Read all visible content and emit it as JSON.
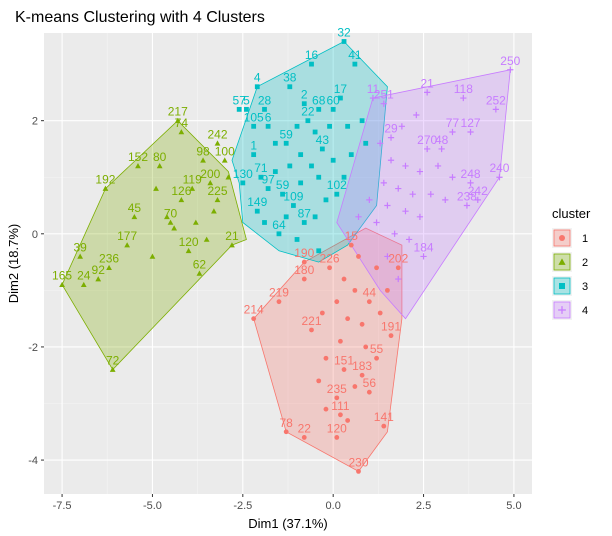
{
  "chart_data": {
    "type": "scatter",
    "title": "K-means Clustering with 4 Clusters",
    "xlabel": "Dim1 (37.1%)",
    "ylabel": "Dim2 (18.7%)",
    "xlim": [
      -8.0,
      5.5
    ],
    "ylim": [
      -4.6,
      3.55
    ],
    "xticks": [
      -7.5,
      -5.0,
      -2.5,
      0.0,
      2.5,
      5.0
    ],
    "xtick_labels": [
      "-7.5",
      "-5.0",
      "-2.5",
      "0.0",
      "2.5",
      "5.0"
    ],
    "yticks": [
      -4,
      -2,
      0,
      2
    ],
    "ytick_labels": [
      "-4",
      "-2",
      "0",
      "2"
    ],
    "grid": true,
    "legend": {
      "title": "cluster",
      "placement": "right",
      "entries": [
        "1",
        "2",
        "3",
        "4"
      ]
    },
    "colors": {
      "1": "#F8766D",
      "2": "#7CAE00",
      "3": "#00BFC4",
      "4": "#C77CFF"
    },
    "series": [
      {
        "name": "1",
        "marker": "circle",
        "hull": [
          [
            0.7,
            -4.2
          ],
          [
            1.5,
            -3.5
          ],
          [
            1.9,
            -1.5
          ],
          [
            1.9,
            -0.2
          ],
          [
            0.9,
            0.1
          ],
          [
            -0.8,
            -0.5
          ],
          [
            -2.2,
            -1.5
          ],
          [
            -1.3,
            -3.5
          ]
        ],
        "points": [
          {
            "label": "230",
            "x": 0.7,
            "y": -4.2
          },
          {
            "label": "141",
            "x": 1.4,
            "y": -3.4
          },
          {
            "label": "78",
            "x": -1.3,
            "y": -3.5
          },
          {
            "label": "22",
            "x": -0.8,
            "y": -3.6
          },
          {
            "label": "120",
            "x": 0.1,
            "y": -3.6
          },
          {
            "label": "111",
            "x": 0.2,
            "y": -3.2
          },
          {
            "label": "56",
            "x": 1.0,
            "y": -2.8
          },
          {
            "label": "214",
            "x": -2.2,
            "y": -1.5
          },
          {
            "label": "219",
            "x": -1.5,
            "y": -1.2
          },
          {
            "label": "221",
            "x": -0.6,
            "y": -1.7
          },
          {
            "label": "190",
            "x": -0.8,
            "y": -0.5
          },
          {
            "label": "180",
            "x": -0.8,
            "y": -0.8
          },
          {
            "label": "226",
            "x": -0.1,
            "y": -0.6
          },
          {
            "label": "55",
            "x": 1.2,
            "y": -2.2
          },
          {
            "label": "191",
            "x": 1.6,
            "y": -1.8
          },
          {
            "label": "202",
            "x": 1.8,
            "y": -0.6
          },
          {
            "label": "183",
            "x": 0.8,
            "y": -2.5
          },
          {
            "label": "151",
            "x": 0.3,
            "y": -2.4
          },
          {
            "label": "235",
            "x": 0.1,
            "y": -2.9
          },
          {
            "label": "15",
            "x": 0.5,
            "y": -0.2
          },
          {
            "label": "44",
            "x": 1.0,
            "y": -1.2
          },
          {
            "label": "",
            "x": 0.3,
            "y": -0.8
          },
          {
            "label": "",
            "x": 0.6,
            "y": -1.0
          },
          {
            "label": "",
            "x": 0.4,
            "y": -1.5
          },
          {
            "label": "",
            "x": 0.8,
            "y": -1.6
          },
          {
            "label": "",
            "x": 0.2,
            "y": -1.9
          },
          {
            "label": "",
            "x": 0.9,
            "y": -2.0
          },
          {
            "label": "",
            "x": -0.2,
            "y": -2.2
          },
          {
            "label": "",
            "x": -0.4,
            "y": -2.6
          },
          {
            "label": "",
            "x": 0.6,
            "y": -2.7
          },
          {
            "label": "",
            "x": -0.2,
            "y": -3.1
          },
          {
            "label": "",
            "x": 0.4,
            "y": -3.3
          },
          {
            "label": "",
            "x": 1.2,
            "y": -0.6
          },
          {
            "label": "",
            "x": 1.5,
            "y": -1.0
          },
          {
            "label": "",
            "x": 0.1,
            "y": -1.2
          },
          {
            "label": "",
            "x": -0.3,
            "y": -1.4
          },
          {
            "label": "",
            "x": 1.3,
            "y": -1.4
          },
          {
            "label": "",
            "x": 0.7,
            "y": -0.4
          }
        ]
      },
      {
        "name": "2",
        "marker": "triangle",
        "hull": [
          [
            -7.5,
            -0.9
          ],
          [
            -6.1,
            -2.4
          ],
          [
            -2.8,
            -0.2
          ],
          [
            -2.4,
            -0.1
          ],
          [
            -2.9,
            1.1
          ],
          [
            -4.3,
            2.0
          ],
          [
            -6.3,
            0.8
          ]
        ],
        "points": [
          {
            "label": "217",
            "x": -4.3,
            "y": 2.0
          },
          {
            "label": "74",
            "x": -4.2,
            "y": 1.8
          },
          {
            "label": "192",
            "x": -6.3,
            "y": 0.8
          },
          {
            "label": "152",
            "x": -5.4,
            "y": 1.2
          },
          {
            "label": "80",
            "x": -4.8,
            "y": 1.2
          },
          {
            "label": "98",
            "x": -3.6,
            "y": 1.3
          },
          {
            "label": "242",
            "x": -3.2,
            "y": 1.6
          },
          {
            "label": "100",
            "x": -3.0,
            "y": 1.3
          },
          {
            "label": "119",
            "x": -3.9,
            "y": 0.8
          },
          {
            "label": "126",
            "x": -4.2,
            "y": 0.6
          },
          {
            "label": "200",
            "x": -3.4,
            "y": 0.9
          },
          {
            "label": "225",
            "x": -3.2,
            "y": 0.6
          },
          {
            "label": "45",
            "x": -5.5,
            "y": 0.3
          },
          {
            "label": "70",
            "x": -4.5,
            "y": 0.2
          },
          {
            "label": "177",
            "x": -5.7,
            "y": -0.2
          },
          {
            "label": "120",
            "x": -4.0,
            "y": -0.3
          },
          {
            "label": "21",
            "x": -2.8,
            "y": -0.2
          },
          {
            "label": "39",
            "x": -7.0,
            "y": -0.4
          },
          {
            "label": "236",
            "x": -6.2,
            "y": -0.6
          },
          {
            "label": "24",
            "x": -6.9,
            "y": -0.9
          },
          {
            "label": "92",
            "x": -6.5,
            "y": -0.8
          },
          {
            "label": "165",
            "x": -7.5,
            "y": -0.9
          },
          {
            "label": "62",
            "x": -3.7,
            "y": -0.7
          },
          {
            "label": "72",
            "x": -6.1,
            "y": -2.4
          },
          {
            "label": "",
            "x": -4.6,
            "y": 0.3
          },
          {
            "label": "",
            "x": -4.4,
            "y": 0.1
          },
          {
            "label": "",
            "x": -3.8,
            "y": 0.2
          },
          {
            "label": "",
            "x": -3.5,
            "y": -0.1
          },
          {
            "label": "",
            "x": -5.0,
            "y": -0.4
          },
          {
            "label": "",
            "x": -4.9,
            "y": 0.8
          },
          {
            "label": "",
            "x": -3.3,
            "y": 0.4
          },
          {
            "label": "",
            "x": -2.9,
            "y": 1.0
          }
        ]
      },
      {
        "name": "3",
        "marker": "square",
        "hull": [
          [
            0.3,
            3.4
          ],
          [
            1.5,
            2.6
          ],
          [
            1.2,
            0.5
          ],
          [
            0.4,
            -0.2
          ],
          [
            -0.4,
            -0.5
          ],
          [
            -1.5,
            -0.3
          ],
          [
            -2.5,
            0.2
          ],
          [
            -2.6,
            0.9
          ],
          [
            -2.8,
            1.3
          ],
          [
            -2.1,
            2.6
          ]
        ],
        "points": [
          {
            "label": "32",
            "x": 0.3,
            "y": 3.4
          },
          {
            "label": "16",
            "x": -0.6,
            "y": 3.0
          },
          {
            "label": "41",
            "x": 0.6,
            "y": 3.0
          },
          {
            "label": "4",
            "x": -2.1,
            "y": 2.6
          },
          {
            "label": "38",
            "x": -1.2,
            "y": 2.6
          },
          {
            "label": "57",
            "x": -2.6,
            "y": 2.2
          },
          {
            "label": "5",
            "x": -2.4,
            "y": 2.2
          },
          {
            "label": "28",
            "x": -1.9,
            "y": 2.2
          },
          {
            "label": "2",
            "x": -0.8,
            "y": 2.3
          },
          {
            "label": "68",
            "x": -0.4,
            "y": 2.2
          },
          {
            "label": "60",
            "x": 0.0,
            "y": 2.2
          },
          {
            "label": "17",
            "x": 0.2,
            "y": 2.4
          },
          {
            "label": "22",
            "x": -0.7,
            "y": 2.0
          },
          {
            "label": "105",
            "x": -2.2,
            "y": 1.9
          },
          {
            "label": "6",
            "x": -1.8,
            "y": 1.9
          },
          {
            "label": "1",
            "x": -2.2,
            "y": 1.4
          },
          {
            "label": "59",
            "x": -1.3,
            "y": 1.6
          },
          {
            "label": "43",
            "x": -0.3,
            "y": 1.5
          },
          {
            "label": "71",
            "x": -2.0,
            "y": 1.0
          },
          {
            "label": "97",
            "x": -1.8,
            "y": 0.8
          },
          {
            "label": "130",
            "x": -2.5,
            "y": 0.9
          },
          {
            "label": "59",
            "x": -1.4,
            "y": 0.7
          },
          {
            "label": "102",
            "x": 0.1,
            "y": 0.7
          },
          {
            "label": "109",
            "x": -1.1,
            "y": 0.5
          },
          {
            "label": "149",
            "x": -2.1,
            "y": 0.4
          },
          {
            "label": "64",
            "x": -1.5,
            "y": 0.0
          },
          {
            "label": "87",
            "x": -0.8,
            "y": 0.2
          },
          {
            "label": "",
            "x": -1.0,
            "y": 1.9
          },
          {
            "label": "",
            "x": -0.5,
            "y": 1.8
          },
          {
            "label": "",
            "x": -0.1,
            "y": 1.9
          },
          {
            "label": "",
            "x": 0.4,
            "y": 1.9
          },
          {
            "label": "",
            "x": -1.6,
            "y": 1.6
          },
          {
            "label": "",
            "x": -0.9,
            "y": 1.4
          },
          {
            "label": "",
            "x": -0.6,
            "y": 1.2
          },
          {
            "label": "",
            "x": 0.0,
            "y": 1.3
          },
          {
            "label": "",
            "x": 0.5,
            "y": 1.4
          },
          {
            "label": "",
            "x": -1.2,
            "y": 1.2
          },
          {
            "label": "",
            "x": -1.6,
            "y": 1.1
          },
          {
            "label": "",
            "x": -0.4,
            "y": 1.0
          },
          {
            "label": "",
            "x": 0.3,
            "y": 1.0
          },
          {
            "label": "",
            "x": -0.9,
            "y": 0.9
          },
          {
            "label": "",
            "x": -0.2,
            "y": 0.6
          },
          {
            "label": "",
            "x": -1.3,
            "y": 0.3
          },
          {
            "label": "",
            "x": -0.5,
            "y": 0.3
          },
          {
            "label": "",
            "x": -1.9,
            "y": 0.2
          },
          {
            "label": "",
            "x": -0.4,
            "y": -0.3
          },
          {
            "label": "",
            "x": -1.0,
            "y": -0.1
          },
          {
            "label": "",
            "x": 0.8,
            "y": 2.0
          },
          {
            "label": "",
            "x": 0.9,
            "y": 1.6
          }
        ]
      },
      {
        "name": "4",
        "marker": "plus",
        "hull": [
          [
            4.9,
            2.9
          ],
          [
            4.6,
            1.0
          ],
          [
            2.0,
            -1.5
          ],
          [
            1.3,
            -1.0
          ],
          [
            0.1,
            0.2
          ],
          [
            1.1,
            2.4
          ]
        ],
        "points": [
          {
            "label": "250",
            "x": 4.9,
            "y": 2.9
          },
          {
            "label": "21",
            "x": 2.6,
            "y": 2.5
          },
          {
            "label": "118",
            "x": 3.6,
            "y": 2.4
          },
          {
            "label": "252",
            "x": 4.5,
            "y": 2.2
          },
          {
            "label": "11",
            "x": 1.1,
            "y": 2.4
          },
          {
            "label": "251",
            "x": 1.4,
            "y": 2.3
          },
          {
            "label": "77",
            "x": 3.3,
            "y": 1.8
          },
          {
            "label": "127",
            "x": 3.8,
            "y": 1.8
          },
          {
            "label": "29",
            "x": 1.6,
            "y": 1.7
          },
          {
            "label": "270",
            "x": 2.6,
            "y": 1.5
          },
          {
            "label": "48",
            "x": 3.0,
            "y": 1.5
          },
          {
            "label": "240",
            "x": 4.6,
            "y": 1.0
          },
          {
            "label": "248",
            "x": 3.8,
            "y": 0.9
          },
          {
            "label": "242",
            "x": 4.0,
            "y": 0.6
          },
          {
            "label": "238",
            "x": 3.7,
            "y": 0.5
          },
          {
            "label": "184",
            "x": 2.5,
            "y": -0.4
          },
          {
            "label": "",
            "x": 1.6,
            "y": 1.3
          },
          {
            "label": "",
            "x": 2.0,
            "y": 1.2
          },
          {
            "label": "",
            "x": 2.4,
            "y": 1.1
          },
          {
            "label": "",
            "x": 2.9,
            "y": 1.2
          },
          {
            "label": "",
            "x": 3.3,
            "y": 1.0
          },
          {
            "label": "",
            "x": 1.4,
            "y": 0.9
          },
          {
            "label": "",
            "x": 1.8,
            "y": 0.8
          },
          {
            "label": "",
            "x": 2.2,
            "y": 0.7
          },
          {
            "label": "",
            "x": 2.7,
            "y": 0.7
          },
          {
            "label": "",
            "x": 3.1,
            "y": 0.6
          },
          {
            "label": "",
            "x": 1.0,
            "y": 0.6
          },
          {
            "label": "",
            "x": 1.5,
            "y": 0.5
          },
          {
            "label": "",
            "x": 2.0,
            "y": 0.4
          },
          {
            "label": "",
            "x": 2.4,
            "y": 0.3
          },
          {
            "label": "",
            "x": 0.7,
            "y": 0.3
          },
          {
            "label": "",
            "x": 1.2,
            "y": 0.2
          },
          {
            "label": "",
            "x": 1.7,
            "y": 0.0
          },
          {
            "label": "",
            "x": 2.1,
            "y": -0.1
          },
          {
            "label": "",
            "x": 1.5,
            "y": -0.4
          },
          {
            "label": "",
            "x": 1.8,
            "y": -0.8
          },
          {
            "label": "",
            "x": 1.3,
            "y": 1.6
          },
          {
            "label": "",
            "x": 1.9,
            "y": 1.9
          },
          {
            "label": "",
            "x": 2.3,
            "y": 2.1
          }
        ]
      }
    ]
  }
}
